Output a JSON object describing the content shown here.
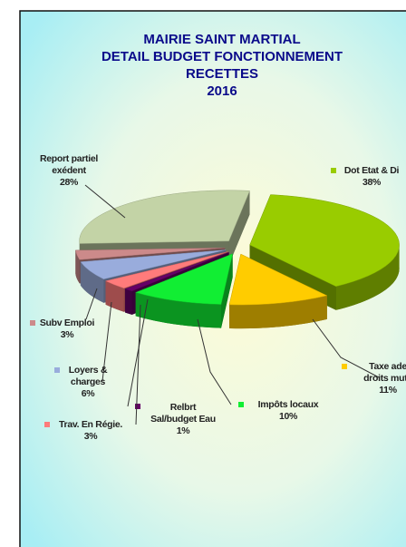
{
  "chart_data": {
    "type": "pie",
    "title": [
      "MAIRIE SAINT MARTIAL",
      "DETAIL BUDGET FONCTIONNEMENT",
      "RECETTES",
      "2016"
    ],
    "categories": [
      [
        "Dot Etat & Di"
      ],
      [
        "Taxe ade",
        "droits muta"
      ],
      [
        "Impôts locaux"
      ],
      [
        "Relbrt",
        "Sal/budget Eau"
      ],
      [
        "Trav. En Régie."
      ],
      [
        "Loyers &",
        "charges"
      ],
      [
        "Subv Emploi"
      ],
      [
        "Report partiel",
        "exédent"
      ]
    ],
    "values": [
      38,
      11,
      10,
      1,
      3,
      6,
      3,
      28
    ],
    "value_labels": [
      "38%",
      "11%",
      "10%",
      "1%",
      "3%",
      "6%",
      "3%",
      "28%"
    ],
    "colors": [
      "#99cc00",
      "#ffcc00",
      "#11ee33",
      "#660066",
      "#ff7b7b",
      "#99acdc",
      "#cc8a8a",
      "#c3d3a6"
    ],
    "legend": false
  }
}
